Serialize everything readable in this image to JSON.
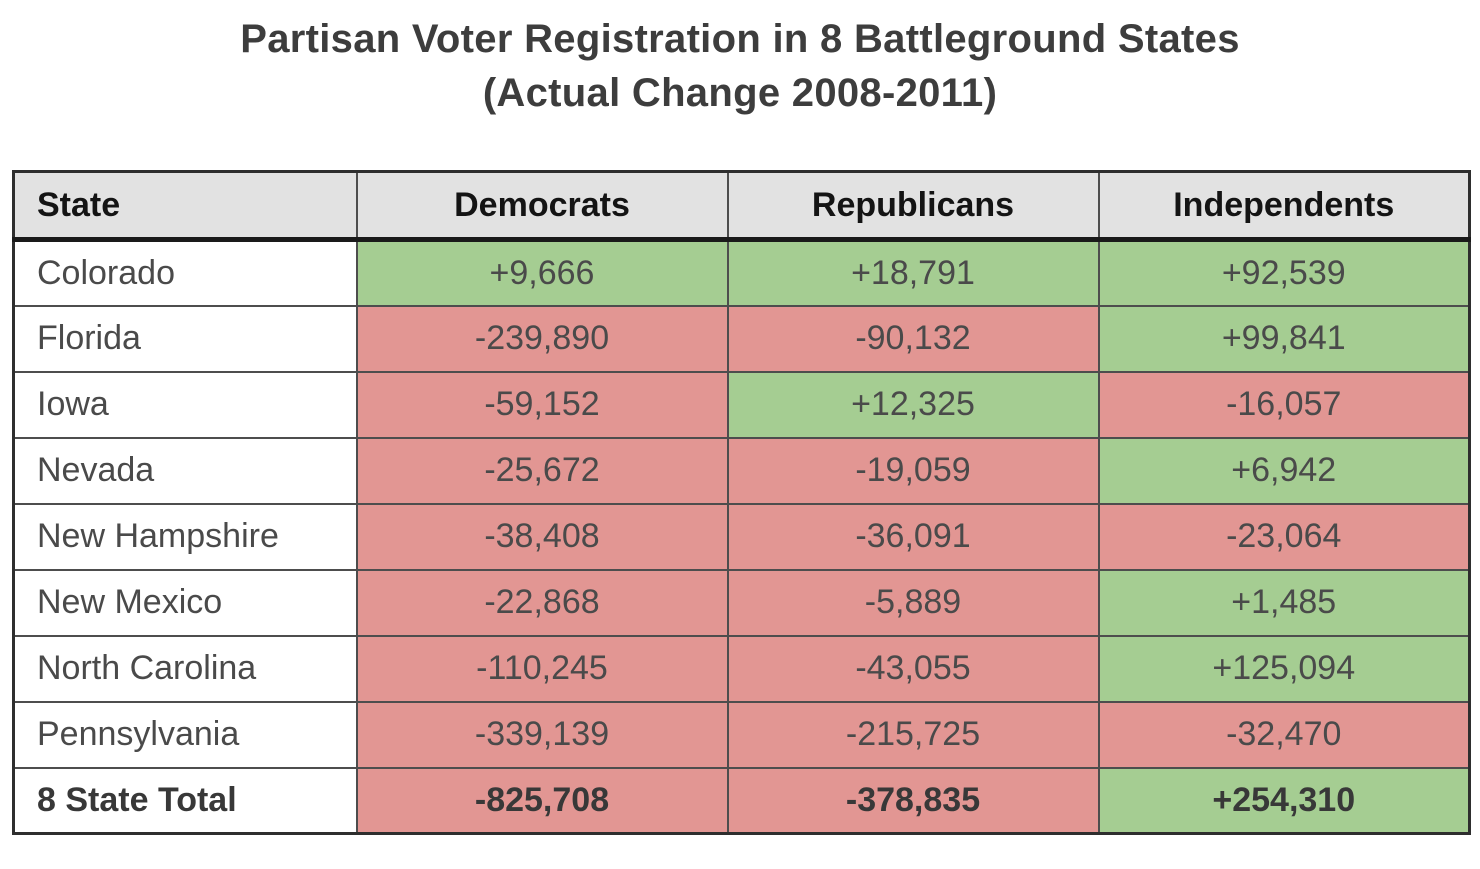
{
  "title": {
    "line1": "Partisan Voter Registration in 8 Battleground States",
    "line2": "(Actual Change 2008-2011)"
  },
  "colors": {
    "positive_bg": "#a5cd92",
    "negative_bg": "#e29693",
    "header_bg": "#e2e2e2",
    "inner_border": "#4d4d4d",
    "outer_border": "#2e2e2e",
    "title_text": "#3d3d3d"
  },
  "chart_data": {
    "type": "table",
    "title": "Partisan Voter Registration in 8 Battleground States (Actual Change 2008-2011)",
    "columns": [
      "State",
      "Democrats",
      "Republicans",
      "Independents"
    ],
    "rows": [
      {
        "state": "Colorado",
        "values": [
          "+9,666",
          "+18,791",
          "+92,539"
        ],
        "signs": [
          "pos",
          "pos",
          "pos"
        ]
      },
      {
        "state": "Florida",
        "values": [
          "-239,890",
          "-90,132",
          "+99,841"
        ],
        "signs": [
          "neg",
          "neg",
          "pos"
        ]
      },
      {
        "state": "Iowa",
        "values": [
          "-59,152",
          "+12,325",
          "-16,057"
        ],
        "signs": [
          "neg",
          "pos",
          "neg"
        ]
      },
      {
        "state": "Nevada",
        "values": [
          "-25,672",
          "-19,059",
          "+6,942"
        ],
        "signs": [
          "neg",
          "neg",
          "pos"
        ]
      },
      {
        "state": "New Hampshire",
        "values": [
          "-38,408",
          "-36,091",
          "-23,064"
        ],
        "signs": [
          "neg",
          "neg",
          "neg"
        ]
      },
      {
        "state": "New Mexico",
        "values": [
          "-22,868",
          "-5,889",
          "+1,485"
        ],
        "signs": [
          "neg",
          "neg",
          "pos"
        ]
      },
      {
        "state": "North Carolina",
        "values": [
          "-110,245",
          "-43,055",
          "+125,094"
        ],
        "signs": [
          "neg",
          "neg",
          "pos"
        ]
      },
      {
        "state": "Pennsylvania",
        "values": [
          "-339,139",
          "-215,725",
          "-32,470"
        ],
        "signs": [
          "neg",
          "neg",
          "neg"
        ]
      }
    ],
    "total_row": {
      "state": "8 State Total",
      "values": [
        "-825,708",
        "-378,835",
        "+254,310"
      ],
      "signs": [
        "neg",
        "neg",
        "pos"
      ]
    },
    "numeric_rows": [
      {
        "state": "Colorado",
        "democrats": 9666,
        "republicans": 18791,
        "independents": 92539
      },
      {
        "state": "Florida",
        "democrats": -239890,
        "republicans": -90132,
        "independents": 99841
      },
      {
        "state": "Iowa",
        "democrats": -59152,
        "republicans": 12325,
        "independents": -16057
      },
      {
        "state": "Nevada",
        "democrats": -25672,
        "republicans": -19059,
        "independents": 6942
      },
      {
        "state": "New Hampshire",
        "democrats": -38408,
        "republicans": -36091,
        "independents": -23064
      },
      {
        "state": "New Mexico",
        "democrats": -22868,
        "republicans": -5889,
        "independents": 1485
      },
      {
        "state": "North Carolina",
        "democrats": -110245,
        "republicans": -43055,
        "independents": 125094
      },
      {
        "state": "Pennsylvania",
        "democrats": -339139,
        "republicans": -215725,
        "independents": -32470
      },
      {
        "state": "8 State Total",
        "democrats": -825708,
        "republicans": -378835,
        "independents": 254310
      }
    ],
    "legend": "green background = registration gain, red background = registration loss"
  }
}
